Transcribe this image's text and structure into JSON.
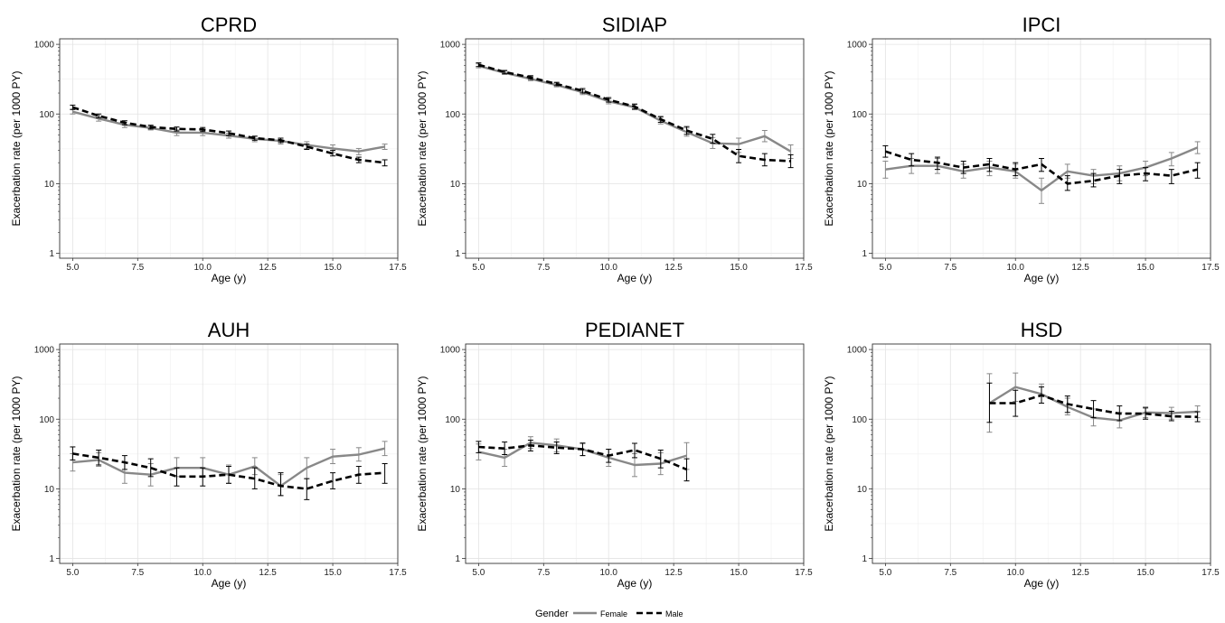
{
  "legend": {
    "title": "Gender",
    "entries": [
      "Female",
      "Male"
    ]
  },
  "colors": {
    "female": "#888888",
    "male": "#000000",
    "grid": "#e3e3e3",
    "frame": "#333333"
  },
  "chart_data": [
    {
      "type": "line",
      "title": "CPRD",
      "xlabel": "Age (y)",
      "ylabel": "Exacerbation rate (per 1000 PY)",
      "xlim": [
        4.5,
        17.5
      ],
      "ylim": [
        0.85,
        1200
      ],
      "yscale": "log",
      "xticks": [
        "5.0",
        "7.5",
        "10.0",
        "12.5",
        "15.0",
        "17.5"
      ],
      "yticks": [
        "1",
        "10",
        "100",
        "1000"
      ],
      "series": [
        {
          "name": "Female",
          "x": [
            5,
            6,
            7,
            8,
            9,
            10,
            11,
            12,
            13,
            14,
            15,
            16,
            17
          ],
          "y": [
            108,
            86,
            70,
            63,
            54,
            54,
            49,
            44,
            41,
            36,
            32,
            29,
            34
          ],
          "lo": [
            100,
            79,
            64,
            59,
            49,
            49,
            45,
            40,
            37,
            32,
            28,
            26,
            31
          ],
          "hi": [
            117,
            93,
            76,
            67,
            59,
            59,
            53,
            48,
            45,
            40,
            36,
            32,
            37
          ]
        },
        {
          "name": "Male",
          "x": [
            5,
            6,
            7,
            8,
            9,
            10,
            11,
            12,
            13,
            14,
            15,
            16,
            17
          ],
          "y": [
            125,
            94,
            75,
            65,
            61,
            60,
            53,
            45,
            42,
            34,
            27,
            22,
            20
          ],
          "lo": [
            116,
            88,
            70,
            61,
            57,
            56,
            49,
            42,
            39,
            31,
            25,
            20,
            18
          ],
          "hi": [
            134,
            100,
            80,
            69,
            65,
            64,
            57,
            48,
            45,
            37,
            30,
            24,
            22
          ]
        }
      ]
    },
    {
      "type": "line",
      "title": "SIDIAP",
      "xlabel": "Age (y)",
      "ylabel": "Exacerbation rate (per 1000 PY)",
      "xlim": [
        4.5,
        17.5
      ],
      "ylim": [
        0.85,
        1200
      ],
      "yscale": "log",
      "xticks": [
        "5.0",
        "7.5",
        "10.0",
        "12.5",
        "15.0",
        "17.5"
      ],
      "yticks": [
        "1",
        "10",
        "100",
        "1000"
      ],
      "series": [
        {
          "name": "Female",
          "x": [
            5,
            6,
            7,
            8,
            9,
            10,
            11,
            12,
            13,
            14,
            15,
            16,
            17
          ],
          "y": [
            490,
            390,
            320,
            260,
            205,
            152,
            125,
            80,
            55,
            38,
            37,
            48,
            29
          ],
          "lo": [
            460,
            370,
            300,
            245,
            190,
            140,
            115,
            72,
            48,
            32,
            28,
            40,
            23
          ],
          "hi": [
            525,
            415,
            345,
            280,
            222,
            165,
            137,
            90,
            63,
            46,
            45,
            58,
            36
          ]
        },
        {
          "name": "Male",
          "x": [
            5,
            6,
            7,
            8,
            9,
            10,
            11,
            12,
            13,
            14,
            15,
            16,
            17
          ],
          "y": [
            510,
            400,
            335,
            270,
            215,
            160,
            128,
            84,
            58,
            44,
            25,
            22,
            21
          ],
          "lo": [
            480,
            378,
            315,
            255,
            200,
            148,
            118,
            76,
            51,
            38,
            20,
            18,
            17
          ],
          "hi": [
            542,
            422,
            355,
            285,
            232,
            172,
            139,
            92,
            66,
            51,
            31,
            27,
            26
          ]
        }
      ]
    },
    {
      "type": "line",
      "title": "IPCI",
      "xlabel": "Age (y)",
      "ylabel": "Exacerbation rate (per 1000 PY)",
      "xlim": [
        4.5,
        17.5
      ],
      "ylim": [
        0.85,
        1200
      ],
      "yscale": "log",
      "xticks": [
        "5.0",
        "7.5",
        "10.0",
        "12.5",
        "15.0",
        "17.5"
      ],
      "yticks": [
        "1",
        "10",
        "100",
        "1000"
      ],
      "series": [
        {
          "name": "Female",
          "x": [
            5,
            6,
            7,
            8,
            9,
            10,
            11,
            12,
            13,
            14,
            15,
            16,
            17
          ],
          "y": [
            16,
            18,
            18,
            15,
            17,
            15,
            8,
            15,
            13,
            14,
            17,
            23,
            33
          ],
          "lo": [
            12,
            14,
            14,
            12,
            13,
            12,
            5.2,
            12,
            10,
            11,
            13,
            18,
            27
          ],
          "hi": [
            21,
            23,
            23,
            19,
            21,
            19,
            12,
            19,
            16,
            18,
            21,
            28,
            40
          ]
        },
        {
          "name": "Male",
          "x": [
            5,
            6,
            7,
            8,
            9,
            10,
            11,
            12,
            13,
            14,
            15,
            16,
            17
          ],
          "y": [
            29,
            22,
            20,
            17,
            19,
            16,
            19,
            10,
            11,
            13,
            14,
            13,
            16
          ],
          "lo": [
            24,
            18,
            16,
            14,
            15,
            13,
            15,
            8,
            9,
            10,
            11,
            10,
            12
          ],
          "hi": [
            35,
            27,
            24,
            21,
            23,
            20,
            23,
            13,
            14,
            16,
            17,
            16,
            20
          ]
        }
      ]
    },
    {
      "type": "line",
      "title": "AUH",
      "xlabel": "Age (y)",
      "ylabel": "Exacerbation rate (per 1000 PY)",
      "xlim": [
        4.5,
        17.5
      ],
      "ylim": [
        0.85,
        1200
      ],
      "yscale": "log",
      "xticks": [
        "5.0",
        "7.5",
        "10.0",
        "12.5",
        "15.0",
        "17.5"
      ],
      "yticks": [
        "1",
        "10",
        "100",
        "1000"
      ],
      "series": [
        {
          "name": "Female",
          "x": [
            5,
            6,
            7,
            8,
            9,
            10,
            11,
            12,
            13,
            14,
            15,
            16,
            17
          ],
          "y": [
            24,
            26,
            17,
            16,
            20,
            20,
            16,
            21,
            11,
            20,
            29,
            31,
            38
          ],
          "lo": [
            18,
            21,
            12,
            11,
            15,
            15,
            12,
            16,
            8,
            14,
            23,
            25,
            30
          ],
          "hi": [
            32,
            33,
            24,
            23,
            28,
            28,
            22,
            28,
            16,
            28,
            37,
            39,
            48
          ]
        },
        {
          "name": "Male",
          "x": [
            5,
            6,
            7,
            8,
            9,
            10,
            11,
            12,
            13,
            14,
            15,
            16,
            17
          ],
          "y": [
            32,
            28,
            24,
            20,
            15,
            15,
            16,
            14,
            11,
            10,
            13,
            16,
            17
          ],
          "lo": [
            26,
            22,
            19,
            15,
            11,
            11,
            12,
            10,
            8,
            7,
            10,
            12,
            12
          ],
          "hi": [
            40,
            36,
            30,
            27,
            20,
            20,
            21,
            20,
            17,
            14,
            17,
            21,
            23
          ]
        }
      ]
    },
    {
      "type": "line",
      "title": "PEDIANET",
      "xlabel": "Age (y)",
      "ylabel": "Exacerbation rate (per 1000 PY)",
      "xlim": [
        4.5,
        17.5
      ],
      "ylim": [
        0.85,
        1200
      ],
      "yscale": "log",
      "xticks": [
        "5.0",
        "7.5",
        "10.0",
        "12.5",
        "15.0",
        "17.5"
      ],
      "yticks": [
        "1",
        "10",
        "100",
        "1000"
      ],
      "series": [
        {
          "name": "Female",
          "x": [
            5,
            6,
            7,
            8,
            9,
            10,
            11,
            12,
            13
          ],
          "y": [
            34,
            28,
            46,
            42,
            37,
            28,
            22,
            23,
            30
          ],
          "lo": [
            26,
            21,
            38,
            34,
            30,
            21,
            15,
            16,
            19
          ],
          "hi": [
            44,
            37,
            56,
            52,
            46,
            37,
            32,
            33,
            46
          ]
        },
        {
          "name": "Male",
          "x": [
            5,
            6,
            7,
            8,
            9,
            10,
            11,
            12,
            13
          ],
          "y": [
            40,
            38,
            42,
            39,
            37,
            30,
            36,
            27,
            19
          ],
          "lo": [
            33,
            31,
            35,
            32,
            30,
            24,
            28,
            20,
            13
          ],
          "hi": [
            48,
            47,
            50,
            47,
            45,
            37,
            45,
            36,
            27
          ]
        }
      ]
    },
    {
      "type": "line",
      "title": "HSD",
      "xlabel": "Age (y)",
      "ylabel": "Exacerbation rate (per 1000 PY)",
      "xlim": [
        4.5,
        17.5
      ],
      "ylim": [
        0.85,
        1200
      ],
      "yscale": "log",
      "xticks": [
        "5.0",
        "7.5",
        "10.0",
        "12.5",
        "15.0",
        "17.5"
      ],
      "yticks": [
        "1",
        "10",
        "100",
        "1000"
      ],
      "series": [
        {
          "name": "Female",
          "x": [
            9,
            10,
            11,
            12,
            13,
            14,
            15,
            16,
            17
          ],
          "y": [
            170,
            290,
            230,
            150,
            105,
            96,
            125,
            122,
            128
          ],
          "lo": [
            65,
            180,
            170,
            115,
            80,
            75,
            105,
            100,
            105
          ],
          "hi": [
            450,
            460,
            320,
            200,
            140,
            125,
            150,
            148,
            155
          ]
        },
        {
          "name": "Male",
          "x": [
            9,
            10,
            11,
            12,
            13,
            14,
            15,
            16,
            17
          ],
          "y": [
            170,
            170,
            220,
            165,
            140,
            120,
            120,
            110,
            108
          ],
          "lo": [
            90,
            110,
            170,
            125,
            105,
            95,
            100,
            95,
            92
          ],
          "hi": [
            330,
            260,
            290,
            215,
            185,
            155,
            145,
            130,
            128
          ]
        }
      ]
    }
  ]
}
